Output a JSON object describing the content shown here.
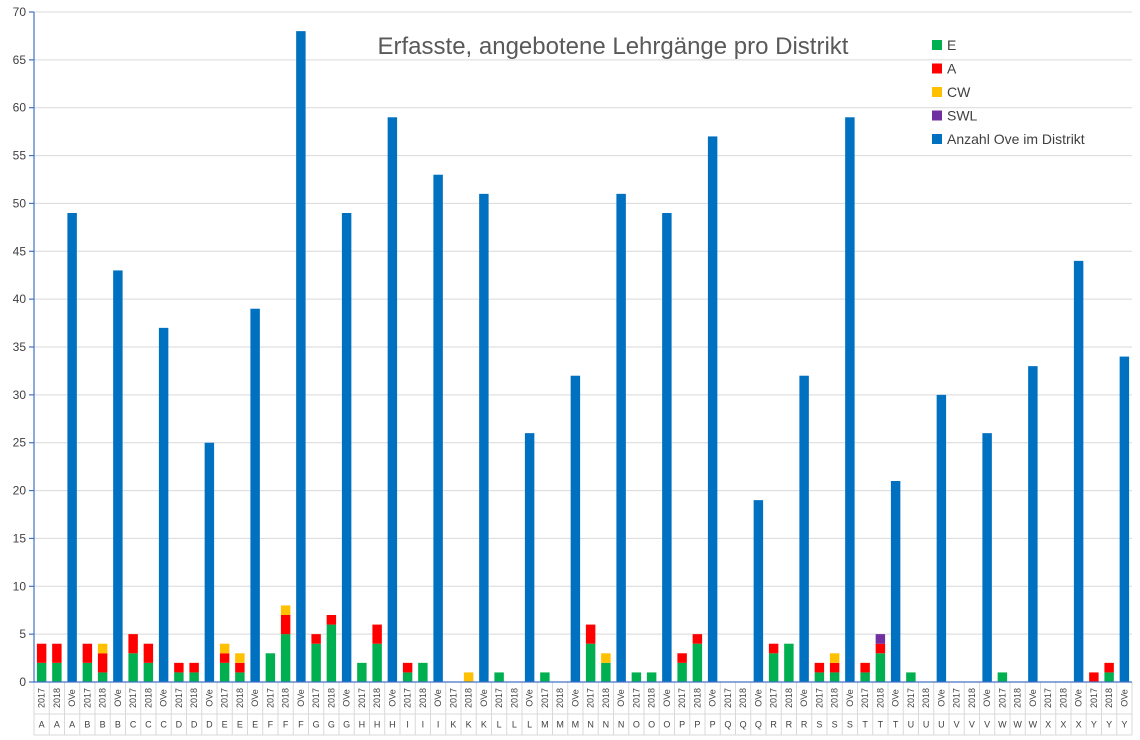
{
  "chart_data": {
    "type": "bar",
    "title": "Erfasste, angebotene Lehrgänge pro Distrikt",
    "xlabel": "",
    "ylabel": "",
    "ylim": [
      0,
      70
    ],
    "y_ticks": [
      0,
      5,
      10,
      15,
      20,
      25,
      30,
      35,
      40,
      45,
      50,
      55,
      60,
      65,
      70
    ],
    "grid": true,
    "legend_position": "top-right",
    "stacked": true,
    "groups": [
      "A",
      "A",
      "A",
      "B",
      "B",
      "B",
      "C",
      "C",
      "C",
      "D",
      "D",
      "D",
      "E",
      "E",
      "E",
      "F",
      "F",
      "F",
      "G",
      "G",
      "G",
      "H",
      "H",
      "H",
      "I",
      "I",
      "I",
      "K",
      "K",
      "K",
      "L",
      "L",
      "L",
      "M",
      "M",
      "M",
      "N",
      "N",
      "N",
      "O",
      "O",
      "O",
      "P",
      "P",
      "P",
      "Q",
      "Q",
      "Q",
      "R",
      "R",
      "R",
      "S",
      "S",
      "S",
      "T",
      "T",
      "T",
      "U",
      "U",
      "U",
      "V",
      "V",
      "V",
      "W",
      "W",
      "W",
      "X",
      "X",
      "X",
      "Y",
      "Y",
      "Y"
    ],
    "categories": [
      "2017",
      "2018",
      "OVe",
      "2017",
      "2018",
      "OVe",
      "2017",
      "2018",
      "OVe",
      "2017",
      "2018",
      "OVe",
      "2017",
      "2018",
      "OVe",
      "2017",
      "2018",
      "OVe",
      "2017",
      "2018",
      "OVe",
      "2017",
      "2018",
      "OVe",
      "2017",
      "2018",
      "OVe",
      "2017",
      "2018",
      "OVe",
      "2017",
      "2018",
      "OVe",
      "2017",
      "2018",
      "OVe",
      "2017",
      "2018",
      "OVe",
      "2017",
      "2018",
      "OVe",
      "2017",
      "2018",
      "OVe",
      "2017",
      "2018",
      "OVe",
      "2017",
      "2018",
      "OVe",
      "2017",
      "2018",
      "OVe",
      "2017",
      "2018",
      "OVe",
      "2017",
      "2018",
      "OVe",
      "2017",
      "2018",
      "OVe",
      "2017",
      "2018",
      "OVe",
      "2017",
      "2018",
      "OVe",
      "2017",
      "2018",
      "OVe"
    ],
    "series": [
      {
        "name": "E",
        "color": "#00b050",
        "values": [
          2,
          2,
          0,
          2,
          1,
          0,
          3,
          2,
          0,
          1,
          1,
          0,
          2,
          1,
          0,
          3,
          5,
          0,
          4,
          6,
          0,
          2,
          4,
          0,
          1,
          2,
          0,
          0,
          0,
          0,
          1,
          0,
          0,
          1,
          0,
          0,
          4,
          2,
          0,
          1,
          1,
          0,
          2,
          4,
          0,
          0,
          0,
          0,
          3,
          4,
          0,
          1,
          1,
          0,
          1,
          3,
          0,
          1,
          0,
          0,
          0,
          0,
          0,
          1,
          0,
          0,
          0,
          0,
          0,
          0,
          1,
          0
        ]
      },
      {
        "name": "A",
        "color": "#ff0000",
        "values": [
          2,
          2,
          0,
          2,
          2,
          0,
          2,
          2,
          0,
          1,
          1,
          0,
          1,
          1,
          0,
          0,
          2,
          0,
          1,
          1,
          0,
          0,
          2,
          0,
          1,
          0,
          0,
          0,
          0,
          0,
          0,
          0,
          0,
          0,
          0,
          0,
          2,
          0,
          0,
          0,
          0,
          0,
          1,
          1,
          0,
          0,
          0,
          0,
          1,
          0,
          0,
          1,
          1,
          0,
          1,
          1,
          0,
          0,
          0,
          0,
          0,
          0,
          0,
          0,
          0,
          0,
          0,
          0,
          0,
          1,
          1,
          0
        ]
      },
      {
        "name": "CW",
        "color": "#ffc000",
        "values": [
          0,
          0,
          0,
          0,
          1,
          0,
          0,
          0,
          0,
          0,
          0,
          0,
          1,
          1,
          0,
          0,
          1,
          0,
          0,
          0,
          0,
          0,
          0,
          0,
          0,
          0,
          0,
          0,
          1,
          0,
          0,
          0,
          0,
          0,
          0,
          0,
          0,
          1,
          0,
          0,
          0,
          0,
          0,
          0,
          0,
          0,
          0,
          0,
          0,
          0,
          0,
          0,
          1,
          0,
          0,
          0,
          0,
          0,
          0,
          0,
          0,
          0,
          0,
          0,
          0,
          0,
          0,
          0,
          0,
          0,
          0,
          0
        ]
      },
      {
        "name": "SWL",
        "color": "#7030a0",
        "values": [
          0,
          0,
          0,
          0,
          0,
          0,
          0,
          0,
          0,
          0,
          0,
          0,
          0,
          0,
          0,
          0,
          0,
          0,
          0,
          0,
          0,
          0,
          0,
          0,
          0,
          0,
          0,
          0,
          0,
          0,
          0,
          0,
          0,
          0,
          0,
          0,
          0,
          0,
          0,
          0,
          0,
          0,
          0,
          0,
          0,
          0,
          0,
          0,
          0,
          0,
          0,
          0,
          0,
          0,
          0,
          1,
          0,
          0,
          0,
          0,
          0,
          0,
          0,
          0,
          0,
          0,
          0,
          0,
          0,
          0,
          0,
          0
        ]
      },
      {
        "name": "Anzahl Ove im Distrikt",
        "color": "#0070c0",
        "values": [
          0,
          0,
          49,
          0,
          0,
          43,
          0,
          0,
          37,
          0,
          0,
          25,
          0,
          0,
          39,
          0,
          0,
          68,
          0,
          0,
          49,
          0,
          0,
          59,
          0,
          0,
          53,
          0,
          0,
          51,
          0,
          0,
          26,
          0,
          0,
          32,
          0,
          0,
          51,
          0,
          0,
          49,
          0,
          0,
          57,
          0,
          0,
          19,
          0,
          0,
          32,
          0,
          0,
          59,
          0,
          0,
          21,
          0,
          0,
          30,
          0,
          0,
          26,
          0,
          0,
          33,
          0,
          0,
          44,
          0,
          0,
          34
        ]
      }
    ]
  },
  "colors": {
    "axis": "#4472c4",
    "grid": "#d9d9d9",
    "label": "#404040"
  }
}
